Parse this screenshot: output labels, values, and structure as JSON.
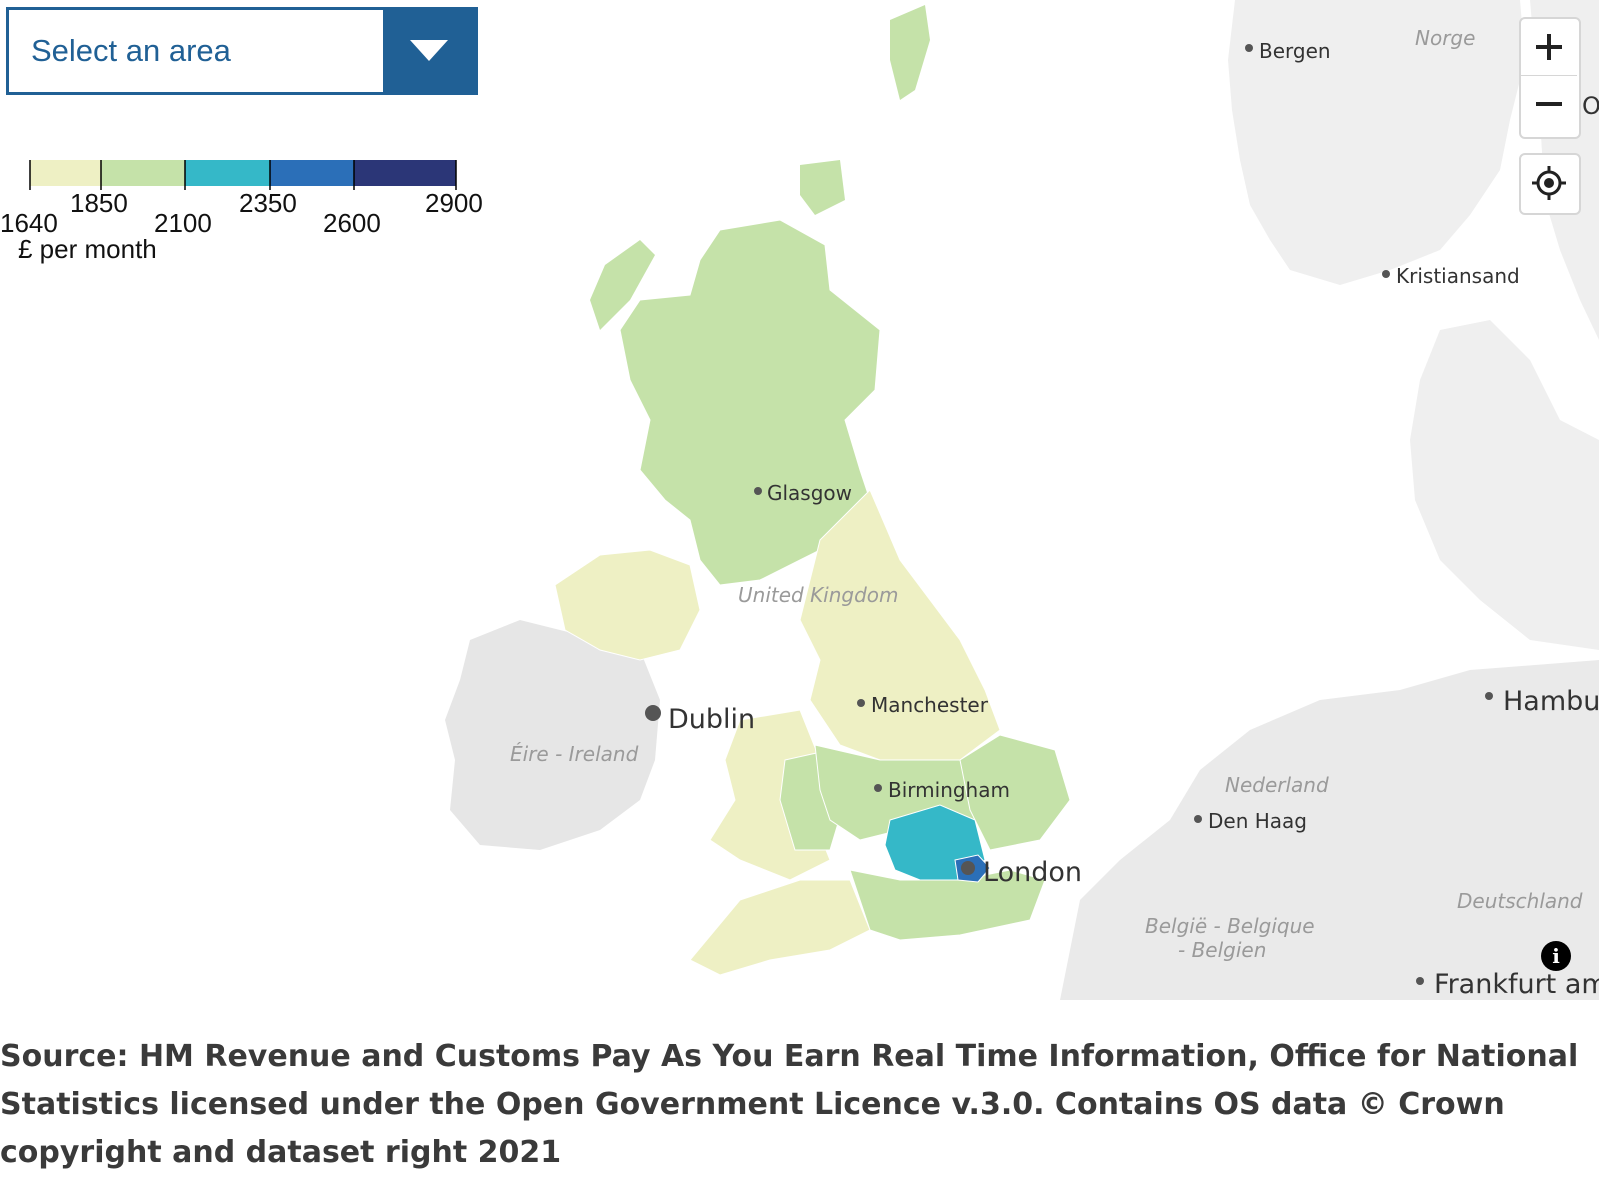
{
  "area_select": {
    "label": "Select an area",
    "icon": "chevron-down-icon"
  },
  "legend": {
    "unit": "£ per month",
    "breaks": [
      "1640",
      "1850",
      "2100",
      "2350",
      "2600",
      "2900"
    ],
    "colors": [
      "#eef0c4",
      "#c5e2a9",
      "#35b8c8",
      "#2b6fb8",
      "#2b3677"
    ]
  },
  "controls": {
    "zoom_in": "zoom-in-icon",
    "zoom_out": "zoom-out-icon",
    "locate": "locate-icon",
    "info": "info-icon"
  },
  "places": {
    "glasgow": "Glasgow",
    "manchester": "Manchester",
    "birmingham": "Birmingham",
    "london": "London",
    "dublin": "Dublin",
    "bergen": "Bergen",
    "kristiansand": "Kristiansand",
    "hamburg": "Hambu",
    "den_haag": "Den Haag",
    "frankfurt": "Frankfurt am",
    "oslo_fragment": "O"
  },
  "countries": {
    "uk": "United Kingdom",
    "ireland": "Éire - Ireland",
    "norway": "Norge",
    "netherlands": "Nederland",
    "belgium_1": "België - Belgique",
    "belgium_2": "- Belgien",
    "germany": "Deutschland"
  },
  "source": "Source: HM Revenue and Customs Pay As You Earn Real Time Information, Office for National Statistics licensed under the Open Government Licence v.3.0. Contains OS data © Crown copyright and dataset right 2021"
}
